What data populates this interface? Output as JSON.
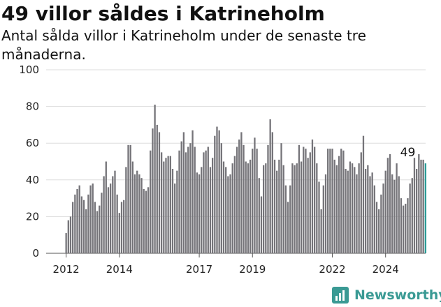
{
  "colors": {
    "bar": "#757479",
    "highlight": "#2b9b97",
    "grid": "#dddddd",
    "brand": "#3a9a94"
  },
  "brand": {
    "name": "Newsworthy",
    "icon": "newsworthy-chart-icon"
  },
  "chart_data": {
    "type": "bar",
    "title": "49 villor såldes i Katrineholm",
    "subtitle": "Antal sålda villor i Katrineholm under de senaste tre månaderna.",
    "xlabel": "",
    "ylabel": "",
    "ylim": [
      0,
      100
    ],
    "yticks": [
      0,
      20,
      40,
      60,
      80,
      100
    ],
    "grid": true,
    "legend": "none",
    "x_start": "2012-01",
    "x_end": "2024-11",
    "xticks": [
      {
        "label": "2012",
        "x": "2012-01"
      },
      {
        "label": "2014",
        "x": "2014-01"
      },
      {
        "label": "2017",
        "x": "2017-01"
      },
      {
        "label": "2019",
        "x": "2019-01"
      },
      {
        "label": "2022",
        "x": "2022-01"
      },
      {
        "label": "2024",
        "x": "2024-01"
      }
    ],
    "series": [
      {
        "values": [
          11,
          18,
          20,
          28,
          32,
          35,
          37,
          31,
          29,
          24,
          32,
          37,
          38,
          28,
          23,
          26,
          33,
          42,
          50,
          36,
          38,
          42,
          45,
          32,
          22,
          28,
          29,
          47,
          59,
          59,
          50,
          43,
          45,
          43,
          41,
          35,
          34,
          36,
          56,
          68,
          81,
          70,
          66,
          55,
          50,
          52,
          53,
          53,
          46,
          38,
          45,
          56,
          61,
          66,
          55,
          58,
          60,
          67,
          58,
          44,
          43,
          47,
          55,
          56,
          58,
          47,
          52,
          64,
          69,
          67,
          60,
          50,
          47,
          42,
          43,
          49,
          53,
          58,
          62,
          66,
          59,
          50,
          49,
          51,
          57,
          63,
          57,
          41,
          31,
          48,
          49,
          59,
          73,
          66,
          51,
          45,
          51,
          60,
          48,
          37,
          28,
          37,
          49,
          48,
          49,
          59,
          50,
          58,
          57,
          52,
          55,
          62,
          58,
          49,
          39,
          24,
          37,
          43,
          57,
          57,
          57,
          51,
          48,
          53,
          57,
          56,
          46,
          45,
          50,
          49,
          47,
          43,
          49,
          55,
          64,
          46,
          48,
          42,
          44,
          37,
          28,
          24,
          32,
          38,
          45,
          52,
          54,
          43,
          40,
          49,
          42,
          30,
          26,
          27,
          30,
          38,
          41,
          52,
          46,
          54,
          51,
          51,
          49
        ]
      }
    ],
    "annotations": [
      {
        "text": "49",
        "x": "2024-11",
        "y": 49
      }
    ]
  }
}
